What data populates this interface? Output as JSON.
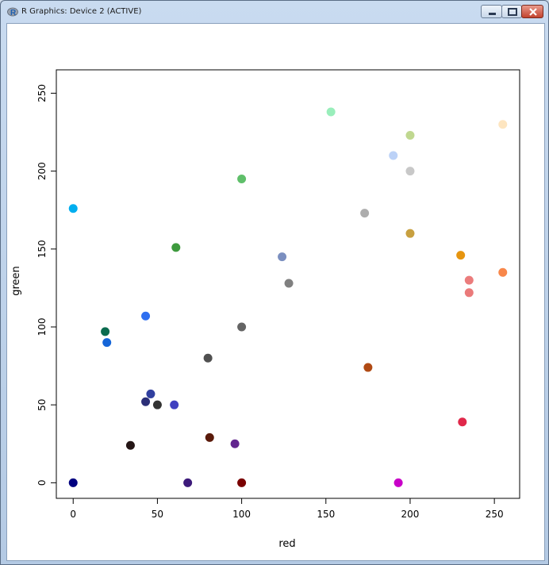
{
  "window": {
    "title": "R Graphics: Device 2 (ACTIVE)"
  },
  "colors": {
    "titlebar": "#c9dbf0",
    "plot_background": "#ffffff",
    "axis": "#000000"
  },
  "icons": {
    "app": "r-logo-icon",
    "minimize": "minimize-icon",
    "maximize": "maximize-icon",
    "close": "close-icon"
  },
  "chart_data": {
    "type": "scatter",
    "xlabel": "red",
    "ylabel": "green",
    "xlim": [
      -10,
      265
    ],
    "ylim": [
      -10,
      265
    ],
    "xticks": [
      0,
      50,
      100,
      150,
      200,
      250
    ],
    "yticks": [
      0,
      50,
      100,
      150,
      200,
      250
    ],
    "grid": false,
    "points": [
      {
        "x": 0,
        "y": 176,
        "color": "#00aeef"
      },
      {
        "x": 0,
        "y": 0,
        "color": "#000080"
      },
      {
        "x": 19,
        "y": 97,
        "color": "#0b6b4f"
      },
      {
        "x": 20,
        "y": 90,
        "color": "#1565d8"
      },
      {
        "x": 34,
        "y": 24,
        "color": "#241515"
      },
      {
        "x": 43,
        "y": 107,
        "color": "#2e6ff0"
      },
      {
        "x": 43,
        "y": 52,
        "color": "#2b2f77"
      },
      {
        "x": 46,
        "y": 57,
        "color": "#303f9f"
      },
      {
        "x": 50,
        "y": 50,
        "color": "#333333"
      },
      {
        "x": 60,
        "y": 50,
        "color": "#4040c0"
      },
      {
        "x": 61,
        "y": 151,
        "color": "#3e9a3e"
      },
      {
        "x": 68,
        "y": 0,
        "color": "#3d1a7a"
      },
      {
        "x": 80,
        "y": 80,
        "color": "#505050"
      },
      {
        "x": 81,
        "y": 29,
        "color": "#5a1a0a"
      },
      {
        "x": 96,
        "y": 25,
        "color": "#62258e"
      },
      {
        "x": 100,
        "y": 195,
        "color": "#5fbf6a"
      },
      {
        "x": 100,
        "y": 100,
        "color": "#646464"
      },
      {
        "x": 100,
        "y": 0,
        "color": "#7a0000"
      },
      {
        "x": 124,
        "y": 145,
        "color": "#7b8fc0"
      },
      {
        "x": 128,
        "y": 128,
        "color": "#808080"
      },
      {
        "x": 153,
        "y": 238,
        "color": "#99eebb"
      },
      {
        "x": 173,
        "y": 173,
        "color": "#adadad"
      },
      {
        "x": 175,
        "y": 74,
        "color": "#b04a14"
      },
      {
        "x": 190,
        "y": 210,
        "color": "#bcd2f7"
      },
      {
        "x": 193,
        "y": 0,
        "color": "#c800c8"
      },
      {
        "x": 200,
        "y": 223,
        "color": "#c0d890"
      },
      {
        "x": 200,
        "y": 200,
        "color": "#c8c8c8"
      },
      {
        "x": 200,
        "y": 160,
        "color": "#c8a040"
      },
      {
        "x": 230,
        "y": 146,
        "color": "#e69510"
      },
      {
        "x": 231,
        "y": 39,
        "color": "#e0284a"
      },
      {
        "x": 235,
        "y": 130,
        "color": "#eb7c7c"
      },
      {
        "x": 235,
        "y": 122,
        "color": "#ea7a7a"
      },
      {
        "x": 255,
        "y": 230,
        "color": "#fde5c0"
      },
      {
        "x": 255,
        "y": 135,
        "color": "#f8874a"
      }
    ]
  }
}
